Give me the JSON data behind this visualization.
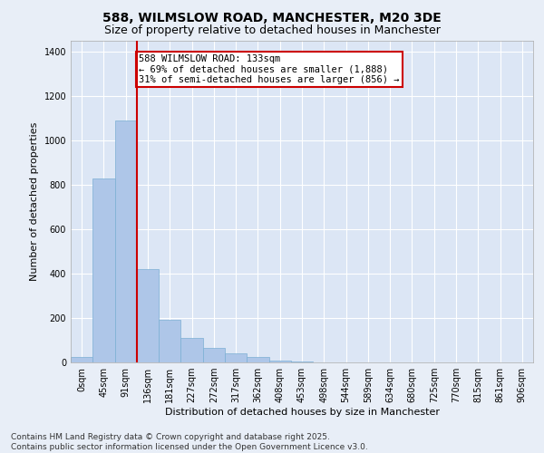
{
  "title_line1": "588, WILMSLOW ROAD, MANCHESTER, M20 3DE",
  "title_line2": "Size of property relative to detached houses in Manchester",
  "xlabel": "Distribution of detached houses by size in Manchester",
  "ylabel": "Number of detached properties",
  "bin_labels": [
    "0sqm",
    "45sqm",
    "91sqm",
    "136sqm",
    "181sqm",
    "227sqm",
    "272sqm",
    "317sqm",
    "362sqm",
    "408sqm",
    "453sqm",
    "498sqm",
    "544sqm",
    "589sqm",
    "634sqm",
    "680sqm",
    "725sqm",
    "770sqm",
    "815sqm",
    "861sqm",
    "906sqm"
  ],
  "bar_values": [
    25,
    830,
    1090,
    420,
    190,
    110,
    65,
    40,
    25,
    10,
    5,
    2,
    1,
    0,
    0,
    0,
    0,
    0,
    0,
    0,
    0
  ],
  "bar_color": "#aec6e8",
  "bar_edge_color": "#7bafd4",
  "vline_x": 3,
  "vline_color": "#cc0000",
  "annotation_text": "588 WILMSLOW ROAD: 133sqm\n← 69% of detached houses are smaller (1,888)\n31% of semi-detached houses are larger (856) →",
  "annotation_box_color": "#ffffff",
  "annotation_box_edge": "#cc0000",
  "ylim": [
    0,
    1450
  ],
  "yticks": [
    0,
    200,
    400,
    600,
    800,
    1000,
    1200,
    1400
  ],
  "background_color": "#e8eef7",
  "plot_bg_color": "#dce6f5",
  "footer_line1": "Contains HM Land Registry data © Crown copyright and database right 2025.",
  "footer_line2": "Contains public sector information licensed under the Open Government Licence v3.0.",
  "title_fontsize": 10,
  "subtitle_fontsize": 9,
  "axis_label_fontsize": 8,
  "tick_fontsize": 7,
  "annotation_fontsize": 7.5,
  "footer_fontsize": 6.5
}
